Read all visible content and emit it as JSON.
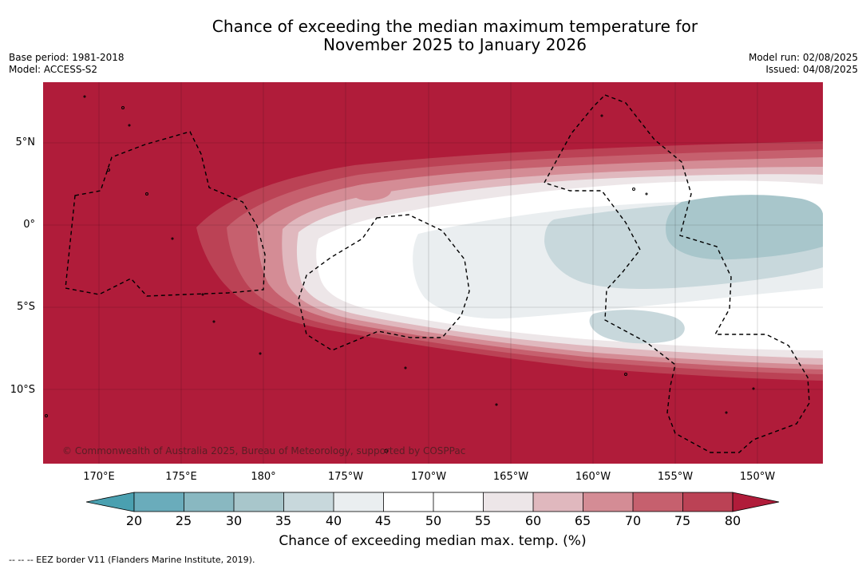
{
  "title": {
    "line1": "Chance of exceeding the median maximum temperature for",
    "line2": "November 2025 to January 2026"
  },
  "meta": {
    "base_period": "Base period: 1981-2018",
    "model": "Model: ACCESS-S2",
    "model_run": "Model run: 02/08/2025",
    "issued": "Issued: 04/08/2025"
  },
  "map": {
    "latitude_labels": [
      "5°N",
      "0°",
      "5°S",
      "10°S"
    ],
    "longitude_labels": [
      "170°E",
      "175°E",
      "180°",
      "175°W",
      "170°W",
      "165°W",
      "160°W",
      "155°W",
      "150°W"
    ],
    "copyright": "© Commonwealth of Australia 2025, Bureau of Meteorology, supported by COSPPac",
    "boundary_style": "dashed-black",
    "background_category": "80+"
  },
  "colorbar": {
    "ticks": [
      "20",
      "25",
      "30",
      "35",
      "40",
      "45",
      "50",
      "55",
      "60",
      "65",
      "70",
      "75",
      "80"
    ],
    "colors": {
      "below_20": "#4aa0b0",
      "20-25": "#6aacbb",
      "25-30": "#89b8c1",
      "30-35": "#a8c6cb",
      "35-40": "#c8d8dc",
      "40-45": "#eaeef0",
      "45-50": "#ffffff",
      "50-55": "#ffffff",
      "55-60": "#ede6e8",
      "60-65": "#e0b8be",
      "65-70": "#d48c95",
      "70-75": "#c6606e",
      "75-80": "#bb4255",
      "above_80": "#b01c3a"
    },
    "label": "Chance of exceeding median max. temp. (%)"
  },
  "footnote": "--  --  -- EEZ border V11 (Flanders Marine Institute, 2019)."
}
